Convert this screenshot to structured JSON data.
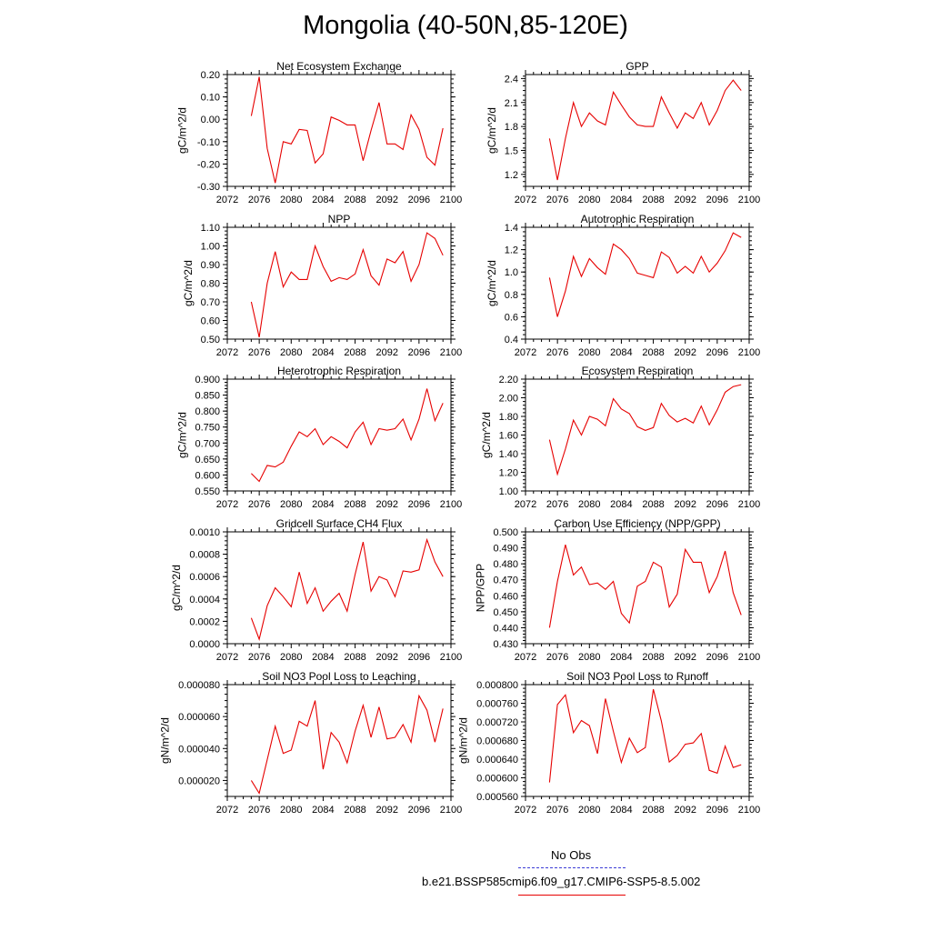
{
  "page": {
    "title": "Mongolia (40-50N,85-120E)"
  },
  "legend": {
    "obs_label": "No Obs",
    "obs_color": "#3b3bd6",
    "model_label": "b.e21.BSSP585cmip6.f09_g17.CMIP6-SSP5-8.5.002",
    "model_color": "#e60000"
  },
  "x_axis": {
    "range": [
      2072,
      2100
    ],
    "ticks": [
      2072,
      2076,
      2080,
      2084,
      2088,
      2092,
      2096,
      2100
    ],
    "tick_labels": [
      "2072",
      "2076",
      "2080",
      "2084",
      "2088",
      "2092",
      "2096",
      "2100"
    ]
  },
  "chart_data": [
    {
      "type": "line",
      "title": "Net Ecosystem Exchange",
      "ylabel": "gC/m^2/d",
      "ylim": [
        -0.3,
        0.2
      ],
      "yticks": [
        "-0.30",
        "-0.20",
        "-0.10",
        "0.00",
        "0.10",
        "0.20"
      ],
      "ytick_values": [
        -0.3,
        -0.2,
        -0.1,
        0.0,
        0.1,
        0.2
      ],
      "x": [
        2075,
        2076,
        2077,
        2078,
        2079,
        2080,
        2081,
        2082,
        2083,
        2084,
        2085,
        2086,
        2087,
        2088,
        2089,
        2090,
        2091,
        2092,
        2093,
        2094,
        2095,
        2096,
        2097,
        2098,
        2099
      ],
      "values": [
        0.015,
        0.19,
        -0.13,
        -0.285,
        -0.1,
        -0.11,
        -0.045,
        -0.05,
        -0.195,
        -0.155,
        0.01,
        -0.005,
        -0.025,
        -0.025,
        -0.185,
        -0.05,
        0.075,
        -0.11,
        -0.11,
        -0.135,
        0.02,
        -0.045,
        -0.17,
        -0.205,
        -0.04
      ]
    },
    {
      "type": "line",
      "title": "GPP",
      "ylabel": "gC/m^2/d",
      "ylim": [
        1.05,
        2.45
      ],
      "yticks": [
        "1.2",
        "1.5",
        "1.8",
        "2.1",
        "2.4"
      ],
      "ytick_values": [
        1.2,
        1.5,
        1.8,
        2.1,
        2.4
      ],
      "x": [
        2075,
        2076,
        2077,
        2078,
        2079,
        2080,
        2081,
        2082,
        2083,
        2084,
        2085,
        2086,
        2087,
        2088,
        2089,
        2090,
        2091,
        2092,
        2093,
        2094,
        2095,
        2096,
        2097,
        2098,
        2099
      ],
      "values": [
        1.65,
        1.13,
        1.65,
        2.1,
        1.8,
        1.97,
        1.87,
        1.82,
        2.23,
        2.07,
        1.92,
        1.82,
        1.8,
        1.8,
        2.17,
        1.97,
        1.78,
        1.97,
        1.9,
        2.1,
        1.82,
        2.0,
        2.25,
        2.38,
        2.25
      ]
    },
    {
      "type": "line",
      "title": "NPP",
      "ylabel": "gC/m^2/d",
      "ylim": [
        0.5,
        1.1
      ],
      "yticks": [
        "0.50",
        "0.60",
        "0.70",
        "0.80",
        "0.90",
        "1.00",
        "1.10"
      ],
      "ytick_values": [
        0.5,
        0.6,
        0.7,
        0.8,
        0.9,
        1.0,
        1.1
      ],
      "x": [
        2075,
        2076,
        2077,
        2078,
        2079,
        2080,
        2081,
        2082,
        2083,
        2084,
        2085,
        2086,
        2087,
        2088,
        2089,
        2090,
        2091,
        2092,
        2093,
        2094,
        2095,
        2096,
        2097,
        2098,
        2099
      ],
      "values": [
        0.7,
        0.51,
        0.8,
        0.97,
        0.78,
        0.86,
        0.82,
        0.82,
        1.0,
        0.89,
        0.81,
        0.83,
        0.82,
        0.85,
        0.98,
        0.84,
        0.79,
        0.93,
        0.91,
        0.97,
        0.81,
        0.9,
        1.07,
        1.04,
        0.95
      ]
    },
    {
      "type": "line",
      "title": "Autotrophic Respiration",
      "ylabel": "gC/m^2/d",
      "ylim": [
        0.4,
        1.4
      ],
      "yticks": [
        "0.4",
        "0.6",
        "0.8",
        "1.0",
        "1.2",
        "1.4"
      ],
      "ytick_values": [
        0.4,
        0.6,
        0.8,
        1.0,
        1.2,
        1.4
      ],
      "x": [
        2075,
        2076,
        2077,
        2078,
        2079,
        2080,
        2081,
        2082,
        2083,
        2084,
        2085,
        2086,
        2087,
        2088,
        2089,
        2090,
        2091,
        2092,
        2093,
        2094,
        2095,
        2096,
        2097,
        2098,
        2099
      ],
      "values": [
        0.95,
        0.6,
        0.83,
        1.14,
        0.96,
        1.12,
        1.04,
        0.98,
        1.25,
        1.2,
        1.12,
        0.99,
        0.97,
        0.95,
        1.18,
        1.13,
        0.99,
        1.05,
        0.99,
        1.14,
        1.0,
        1.08,
        1.19,
        1.35,
        1.31
      ]
    },
    {
      "type": "line",
      "title": "Heterotrophic Respiration",
      "ylabel": "gC/m^2/d",
      "ylim": [
        0.55,
        0.9
      ],
      "yticks": [
        "0.550",
        "0.600",
        "0.650",
        "0.700",
        "0.750",
        "0.800",
        "0.850",
        "0.900"
      ],
      "ytick_values": [
        0.55,
        0.6,
        0.65,
        0.7,
        0.75,
        0.8,
        0.85,
        0.9
      ],
      "x": [
        2075,
        2076,
        2077,
        2078,
        2079,
        2080,
        2081,
        2082,
        2083,
        2084,
        2085,
        2086,
        2087,
        2088,
        2089,
        2090,
        2091,
        2092,
        2093,
        2094,
        2095,
        2096,
        2097,
        2098,
        2099
      ],
      "values": [
        0.605,
        0.58,
        0.63,
        0.625,
        0.64,
        0.69,
        0.735,
        0.72,
        0.745,
        0.695,
        0.72,
        0.705,
        0.685,
        0.735,
        0.765,
        0.695,
        0.745,
        0.74,
        0.745,
        0.775,
        0.71,
        0.775,
        0.87,
        0.77,
        0.825
      ]
    },
    {
      "type": "line",
      "title": "Ecosystem Respiration",
      "ylabel": "gC/m^2/d",
      "ylim": [
        1.0,
        2.2
      ],
      "yticks": [
        "1.00",
        "1.20",
        "1.40",
        "1.60",
        "1.80",
        "2.00",
        "2.20"
      ],
      "ytick_values": [
        1.0,
        1.2,
        1.4,
        1.6,
        1.8,
        2.0,
        2.2
      ],
      "x": [
        2075,
        2076,
        2077,
        2078,
        2079,
        2080,
        2081,
        2082,
        2083,
        2084,
        2085,
        2086,
        2087,
        2088,
        2089,
        2090,
        2091,
        2092,
        2093,
        2094,
        2095,
        2096,
        2097,
        2098,
        2099
      ],
      "values": [
        1.55,
        1.18,
        1.45,
        1.76,
        1.6,
        1.8,
        1.77,
        1.7,
        1.99,
        1.88,
        1.83,
        1.69,
        1.65,
        1.68,
        1.94,
        1.81,
        1.74,
        1.78,
        1.73,
        1.91,
        1.71,
        1.87,
        2.06,
        2.12,
        2.14
      ]
    },
    {
      "type": "line",
      "title": "Gridcell Surface CH4 Flux",
      "ylabel": "gC/m^2/d",
      "ylim": [
        0.0,
        0.001
      ],
      "yticks": [
        "0.0000",
        "0.0002",
        "0.0004",
        "0.0006",
        "0.0008",
        "0.0010"
      ],
      "ytick_values": [
        0.0,
        0.0002,
        0.0004,
        0.0006,
        0.0008,
        0.001
      ],
      "x": [
        2075,
        2076,
        2077,
        2078,
        2079,
        2080,
        2081,
        2082,
        2083,
        2084,
        2085,
        2086,
        2087,
        2088,
        2089,
        2090,
        2091,
        2092,
        2093,
        2094,
        2095,
        2096,
        2097,
        2098,
        2099
      ],
      "values": [
        0.00023,
        4e-05,
        0.00034,
        0.0005,
        0.00042,
        0.00033,
        0.00064,
        0.00036,
        0.0005,
        0.00029,
        0.00038,
        0.00045,
        0.00029,
        0.00062,
        0.00091,
        0.00047,
        0.0006,
        0.00057,
        0.00042,
        0.00065,
        0.00064,
        0.00066,
        0.00093,
        0.00073,
        0.0006
      ]
    },
    {
      "type": "line",
      "title": "Carbon Use Efficiency (NPP/GPP)",
      "ylabel": "NPP/GPP",
      "ylim": [
        0.43,
        0.5
      ],
      "yticks": [
        "0.430",
        "0.440",
        "0.450",
        "0.460",
        "0.470",
        "0.480",
        "0.490",
        "0.500"
      ],
      "ytick_values": [
        0.43,
        0.44,
        0.45,
        0.46,
        0.47,
        0.48,
        0.49,
        0.5
      ],
      "x": [
        2075,
        2076,
        2077,
        2078,
        2079,
        2080,
        2081,
        2082,
        2083,
        2084,
        2085,
        2086,
        2087,
        2088,
        2089,
        2090,
        2091,
        2092,
        2093,
        2094,
        2095,
        2096,
        2097,
        2098,
        2099
      ],
      "values": [
        0.44,
        0.469,
        0.492,
        0.473,
        0.478,
        0.467,
        0.468,
        0.464,
        0.469,
        0.449,
        0.443,
        0.466,
        0.469,
        0.481,
        0.478,
        0.453,
        0.461,
        0.489,
        0.481,
        0.481,
        0.462,
        0.472,
        0.488,
        0.462,
        0.448
      ]
    },
    {
      "type": "line",
      "title": "Soil NO3 Pool Loss to Leaching",
      "ylabel": "gN/m^2/d",
      "ylim": [
        1e-05,
        8e-05
      ],
      "yticks": [
        "0.000020",
        "0.000040",
        "0.000060",
        "0.000080"
      ],
      "ytick_values": [
        2e-05,
        4e-05,
        6e-05,
        8e-05
      ],
      "x": [
        2075,
        2076,
        2077,
        2078,
        2079,
        2080,
        2081,
        2082,
        2083,
        2084,
        2085,
        2086,
        2087,
        2088,
        2089,
        2090,
        2091,
        2092,
        2093,
        2094,
        2095,
        2096,
        2097,
        2098,
        2099
      ],
      "values": [
        2e-05,
        1.2e-05,
        3.3e-05,
        5.4e-05,
        3.7e-05,
        3.9e-05,
        5.7e-05,
        5.4e-05,
        7e-05,
        2.7e-05,
        5e-05,
        4.4e-05,
        3.1e-05,
        5.1e-05,
        6.7e-05,
        4.7e-05,
        6.6e-05,
        4.6e-05,
        4.7e-05,
        5.5e-05,
        4.4e-05,
        7.3e-05,
        6.4e-05,
        4.4e-05,
        6.5e-05
      ]
    },
    {
      "type": "line",
      "title": "Soil NO3 Pool Loss to Runoff",
      "ylabel": "gN/m^2/d",
      "ylim": [
        0.00056,
        0.0008
      ],
      "yticks": [
        "0.000560",
        "0.000600",
        "0.000640",
        "0.000680",
        "0.000720",
        "0.000760",
        "0.000800"
      ],
      "ytick_values": [
        0.00056,
        0.0006,
        0.00064,
        0.00068,
        0.00072,
        0.00076,
        0.0008
      ],
      "x": [
        2075,
        2076,
        2077,
        2078,
        2079,
        2080,
        2081,
        2082,
        2083,
        2084,
        2085,
        2086,
        2087,
        2088,
        2089,
        2090,
        2091,
        2092,
        2093,
        2094,
        2095,
        2096,
        2097,
        2098,
        2099
      ],
      "values": [
        0.00059,
        0.000757,
        0.000778,
        0.000697,
        0.000723,
        0.000712,
        0.000652,
        0.00077,
        0.0007,
        0.000633,
        0.000685,
        0.000654,
        0.000665,
        0.00079,
        0.000722,
        0.000634,
        0.000648,
        0.000672,
        0.000675,
        0.000695,
        0.000616,
        0.00061,
        0.000668,
        0.000622,
        0.000628
      ]
    }
  ]
}
